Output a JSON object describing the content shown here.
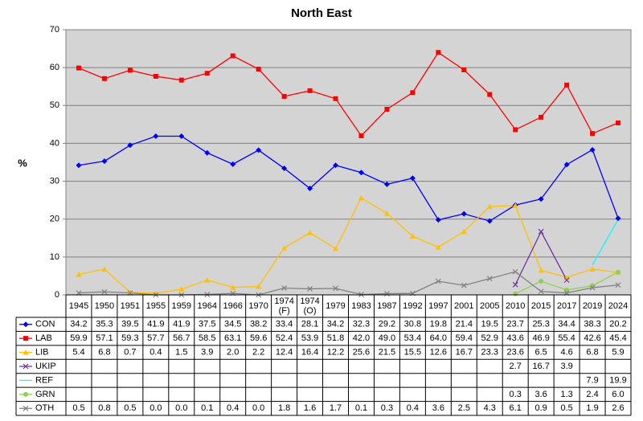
{
  "chart_data": {
    "type": "line",
    "title": "North East",
    "y_label": "%",
    "categories": [
      "1945",
      "1950",
      "1951",
      "1955",
      "1959",
      "1964",
      "1966",
      "1970",
      "1974 (F)",
      "1974 (O)",
      "1979",
      "1983",
      "1987",
      "1992",
      "1997",
      "2001",
      "2005",
      "2010",
      "2015",
      "2017",
      "2019",
      "2024"
    ],
    "ylim": [
      0,
      70
    ],
    "yticks": [
      0,
      10,
      20,
      30,
      40,
      50,
      60,
      70
    ],
    "grid": true,
    "series": [
      {
        "name": "CON",
        "color": "#0000ff",
        "marker": "diamond",
        "values": [
          34.2,
          35.3,
          39.5,
          41.9,
          41.9,
          37.5,
          34.5,
          38.2,
          33.4,
          28.1,
          34.2,
          32.3,
          29.2,
          30.8,
          19.8,
          21.4,
          19.5,
          23.7,
          25.3,
          34.4,
          38.3,
          20.2
        ],
        "value_labels": [
          "34.2",
          "35.3",
          "39.5",
          "41.9",
          "41.9",
          "37.5",
          "34.5",
          "38.2",
          "33.4",
          "28.1",
          "34.2",
          "32.3",
          "29.2",
          "30.8",
          "19.8",
          "21.4",
          "19.5",
          "23.7",
          "25.3",
          "34.4",
          "38.3",
          "20.2"
        ]
      },
      {
        "name": "LAB",
        "color": "#ff0000",
        "marker": "square",
        "values": [
          59.9,
          57.1,
          59.3,
          57.7,
          56.7,
          58.5,
          63.1,
          59.6,
          52.4,
          53.9,
          51.8,
          42.0,
          49.0,
          53.4,
          64.0,
          59.4,
          52.9,
          43.6,
          46.9,
          55.4,
          42.6,
          45.4
        ],
        "value_labels": [
          "59.9",
          "57.1",
          "59.3",
          "57.7",
          "56.7",
          "58.5",
          "63.1",
          "59.6",
          "52.4",
          "53.9",
          "51.8",
          "42.0",
          "49.0",
          "53.4",
          "64.0",
          "59.4",
          "52.9",
          "43.6",
          "46.9",
          "55.4",
          "42.6",
          "45.4"
        ]
      },
      {
        "name": "LIB",
        "color": "#ffc000",
        "marker": "triangle",
        "values": [
          5.4,
          6.8,
          0.7,
          0.4,
          1.5,
          3.9,
          2.0,
          2.2,
          12.4,
          16.4,
          12.2,
          25.6,
          21.5,
          15.5,
          12.6,
          16.7,
          23.3,
          23.6,
          6.5,
          4.6,
          6.8,
          5.9
        ],
        "value_labels": [
          "5.4",
          "6.8",
          "0.7",
          "0.4",
          "1.5",
          "3.9",
          "2.0",
          "2.2",
          "12.4",
          "16.4",
          "12.2",
          "25.6",
          "21.5",
          "15.5",
          "12.6",
          "16.7",
          "23.3",
          "23.6",
          "6.5",
          "4.6",
          "6.8",
          "5.9"
        ]
      },
      {
        "name": "UKIP",
        "color": "#7030a0",
        "marker": "x",
        "values": [
          null,
          null,
          null,
          null,
          null,
          null,
          null,
          null,
          null,
          null,
          null,
          null,
          null,
          null,
          null,
          null,
          null,
          2.7,
          16.7,
          3.9,
          null,
          null
        ],
        "value_labels": [
          null,
          null,
          null,
          null,
          null,
          null,
          null,
          null,
          null,
          null,
          null,
          null,
          null,
          null,
          null,
          null,
          null,
          "2.7",
          "16.7",
          "3.9",
          null,
          null
        ]
      },
      {
        "name": "REF",
        "color": "#00ffff",
        "marker": "none",
        "values": [
          null,
          null,
          null,
          null,
          null,
          null,
          null,
          null,
          null,
          null,
          null,
          null,
          null,
          null,
          null,
          null,
          null,
          null,
          null,
          null,
          7.9,
          19.9
        ],
        "value_labels": [
          null,
          null,
          null,
          null,
          null,
          null,
          null,
          null,
          null,
          null,
          null,
          null,
          null,
          null,
          null,
          null,
          null,
          null,
          null,
          null,
          "7.9",
          "19.9"
        ]
      },
      {
        "name": "GRN",
        "color": "#92d050",
        "marker": "circle",
        "values": [
          null,
          null,
          null,
          null,
          null,
          null,
          null,
          null,
          null,
          null,
          null,
          null,
          null,
          null,
          null,
          null,
          null,
          0.3,
          3.6,
          1.3,
          2.4,
          6.0
        ],
        "value_labels": [
          null,
          null,
          null,
          null,
          null,
          null,
          null,
          null,
          null,
          null,
          null,
          null,
          null,
          null,
          null,
          null,
          null,
          "0.3",
          "3.6",
          "1.3",
          "2.4",
          "6.0"
        ]
      },
      {
        "name": "OTH",
        "color": "#808080",
        "marker": "x",
        "values": [
          0.5,
          0.8,
          0.5,
          0.0,
          0.0,
          0.1,
          0.4,
          0.0,
          1.8,
          1.6,
          1.7,
          0.1,
          0.3,
          0.4,
          3.6,
          2.5,
          4.3,
          6.1,
          0.9,
          0.5,
          1.9,
          2.6
        ],
        "value_labels": [
          "0.5",
          "0.8",
          "0.5",
          "0.0",
          "0.0",
          "0.1",
          "0.4",
          "0.0",
          "1.8",
          "1.6",
          "1.7",
          "0.1",
          "0.3",
          "0.4",
          "3.6",
          "2.5",
          "4.3",
          "6.1",
          "0.9",
          "0.5",
          "1.9",
          "2.6"
        ]
      }
    ]
  }
}
